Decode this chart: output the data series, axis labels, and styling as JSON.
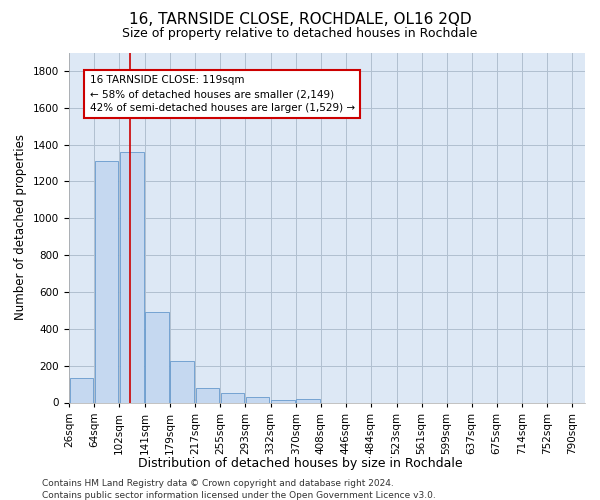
{
  "title": "16, TARNSIDE CLOSE, ROCHDALE, OL16 2QD",
  "subtitle": "Size of property relative to detached houses in Rochdale",
  "xlabel": "Distribution of detached houses by size in Rochdale",
  "ylabel": "Number of detached properties",
  "bar_values": [
    135,
    1310,
    1360,
    490,
    225,
    80,
    50,
    28,
    15,
    20,
    0,
    0,
    0,
    0,
    0,
    0,
    0,
    0,
    0,
    0
  ],
  "bin_labels": [
    "26sqm",
    "64sqm",
    "102sqm",
    "141sqm",
    "179sqm",
    "217sqm",
    "255sqm",
    "293sqm",
    "332sqm",
    "370sqm",
    "408sqm",
    "446sqm",
    "484sqm",
    "523sqm",
    "561sqm",
    "599sqm",
    "637sqm",
    "675sqm",
    "714sqm",
    "752sqm",
    "790sqm"
  ],
  "bin_centers": [
    45,
    83,
    121.5,
    160,
    198,
    236,
    274,
    312,
    351,
    389,
    427,
    465,
    503,
    542,
    580,
    618,
    656,
    694,
    733,
    771
  ],
  "bin_width": 37,
  "bar_color": "#c5d8f0",
  "bar_edgecolor": "#6699cc",
  "vline_x_idx": 2,
  "vline_color": "#cc0000",
  "annotation_text": "16 TARNSIDE CLOSE: 119sqm\n← 58% of detached houses are smaller (2,149)\n42% of semi-detached houses are larger (1,529) →",
  "annotation_box_color": "#cc0000",
  "ylim": [
    0,
    1900
  ],
  "xlim_min": 26,
  "xlim_max": 809,
  "background_color": "#ffffff",
  "axes_bg_color": "#dde8f5",
  "grid_color": "#b0bfcf",
  "footer1": "Contains HM Land Registry data © Crown copyright and database right 2024.",
  "footer2": "Contains public sector information licensed under the Open Government Licence v3.0.",
  "title_fontsize": 11,
  "subtitle_fontsize": 9,
  "tick_fontsize": 7.5,
  "ylabel_fontsize": 8.5,
  "xlabel_fontsize": 9,
  "footer_fontsize": 6.5
}
